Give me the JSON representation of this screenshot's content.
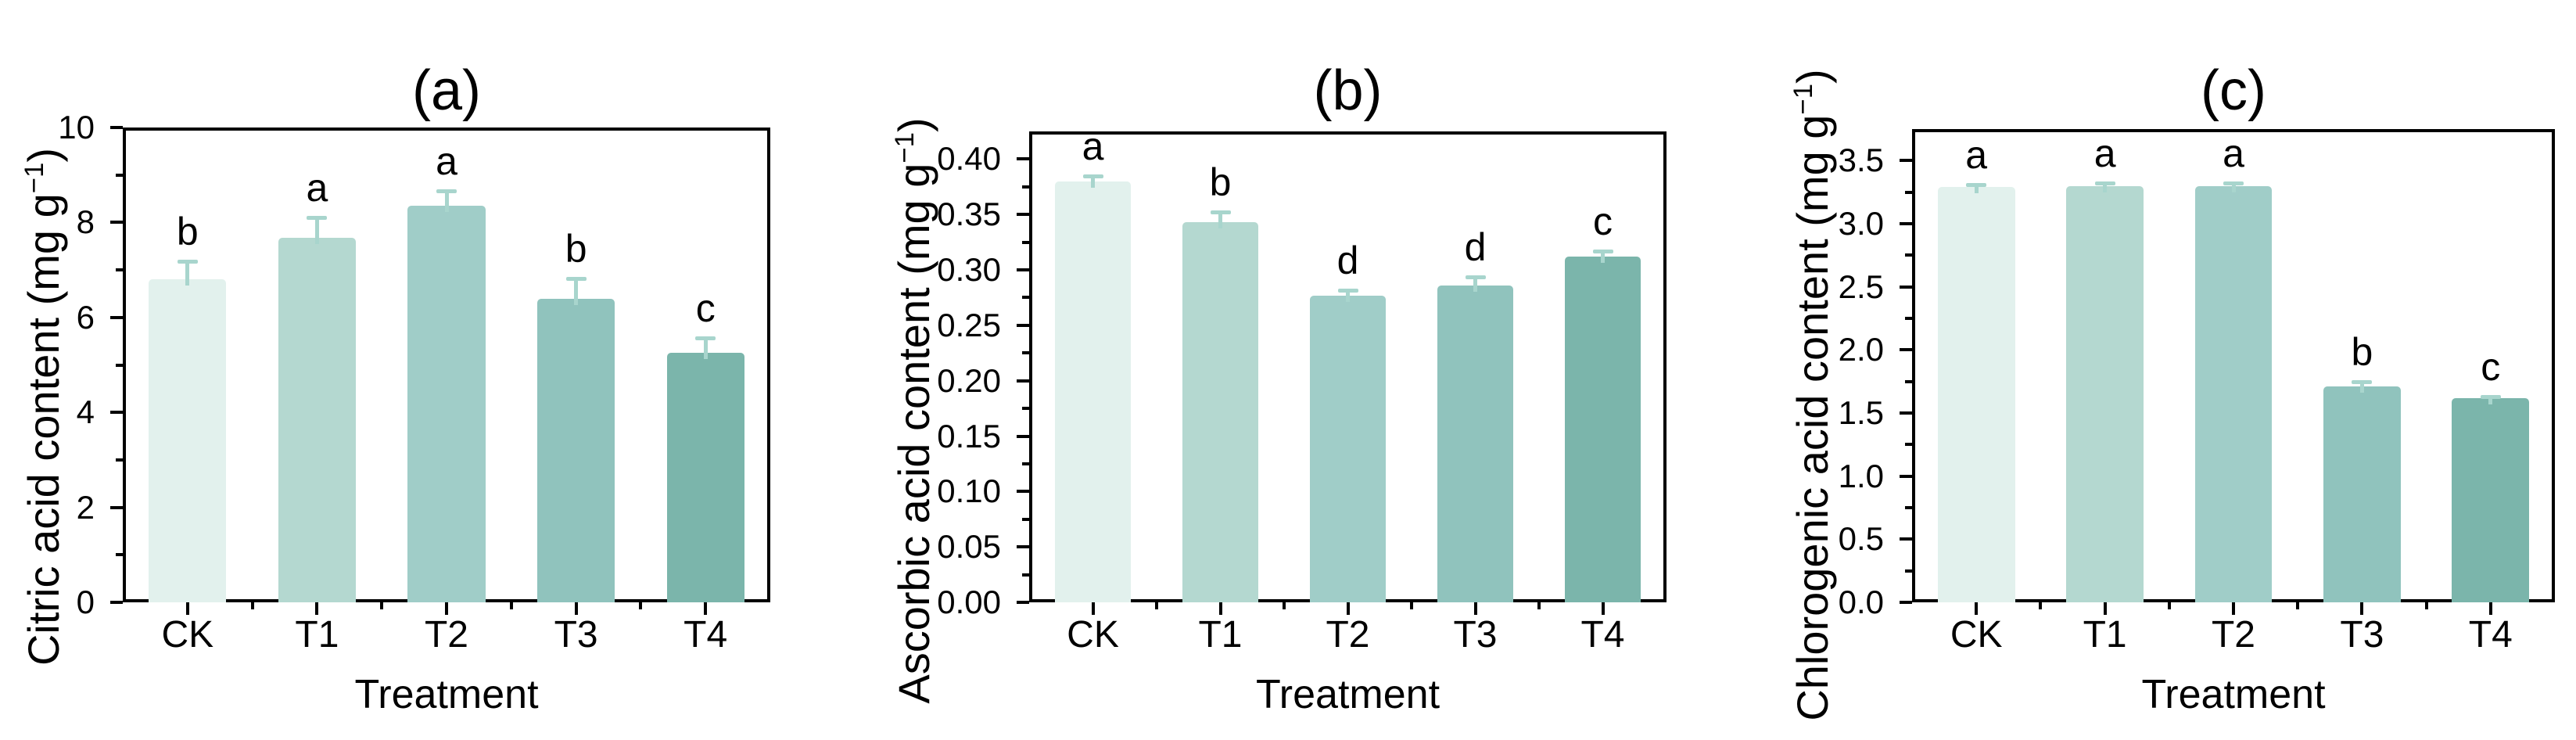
{
  "figure": {
    "background": "#ffffff",
    "panel_labels": [
      "(a)",
      "(b)",
      "(c)"
    ]
  },
  "style": {
    "bar_colors": [
      "#e2f1ed",
      "#b4d8d0",
      "#a0cdc8",
      "#90c3bd",
      "#7bb5ab"
    ],
    "error_bar_color": "#a8d5cd",
    "axis_color": "#000000",
    "text_color": "#000000"
  },
  "chart_data": [
    {
      "type": "bar",
      "panel_label": "(a)",
      "ylabel": "Citric acid content (mg g⁻¹)",
      "xlabel": "Treatment",
      "categories": [
        "CK",
        "T1",
        "T2",
        "T3",
        "T4"
      ],
      "values": [
        6.8,
        7.68,
        8.35,
        6.4,
        5.25
      ],
      "errors": [
        0.38,
        0.42,
        0.32,
        0.42,
        0.32
      ],
      "sig_letters": [
        "b",
        "a",
        "a",
        "b",
        "c"
      ],
      "ylim": [
        0,
        10
      ],
      "ytick_step": 2,
      "yminor_step": 1,
      "ytick_labels": [
        "0",
        "2",
        "4",
        "6",
        "8",
        "10"
      ],
      "grid": false,
      "legend": null
    },
    {
      "type": "bar",
      "panel_label": "(b)",
      "ylabel": "Ascorbic acid content (mg g⁻¹)",
      "xlabel": "Treatment",
      "categories": [
        "CK",
        "T1",
        "T2",
        "T3",
        "T4"
      ],
      "values": [
        0.38,
        0.343,
        0.277,
        0.286,
        0.312
      ],
      "errors": [
        0.005,
        0.009,
        0.005,
        0.008,
        0.005
      ],
      "sig_letters": [
        "a",
        "b",
        "d",
        "d",
        "c"
      ],
      "ylim": [
        0,
        0.425
      ],
      "ytick_step": 0.05,
      "yminor_step": 0.025,
      "ytick_labels": [
        "0.00",
        "0.05",
        "0.10",
        "0.15",
        "0.20",
        "0.25",
        "0.30",
        "0.35",
        "0.40"
      ],
      "grid": false,
      "legend": null
    },
    {
      "type": "bar",
      "panel_label": "(c)",
      "ylabel": "Chlorogenic acid content (mg g⁻¹)",
      "xlabel": "Treatment",
      "categories": [
        "CK",
        "T1",
        "T2",
        "T3",
        "T4"
      ],
      "values": [
        3.29,
        3.3,
        3.3,
        1.71,
        1.62
      ],
      "errors": [
        0.02,
        0.02,
        0.02,
        0.04,
        0.01
      ],
      "sig_letters": [
        "a",
        "a",
        "a",
        "b",
        "c"
      ],
      "ylim": [
        0,
        3.75
      ],
      "ytick_step": 0.5,
      "yminor_step": 0.25,
      "ytick_labels": [
        "0.0",
        "0.5",
        "1.0",
        "1.5",
        "2.0",
        "2.5",
        "3.0",
        "3.5"
      ],
      "grid": false,
      "legend": null
    }
  ]
}
